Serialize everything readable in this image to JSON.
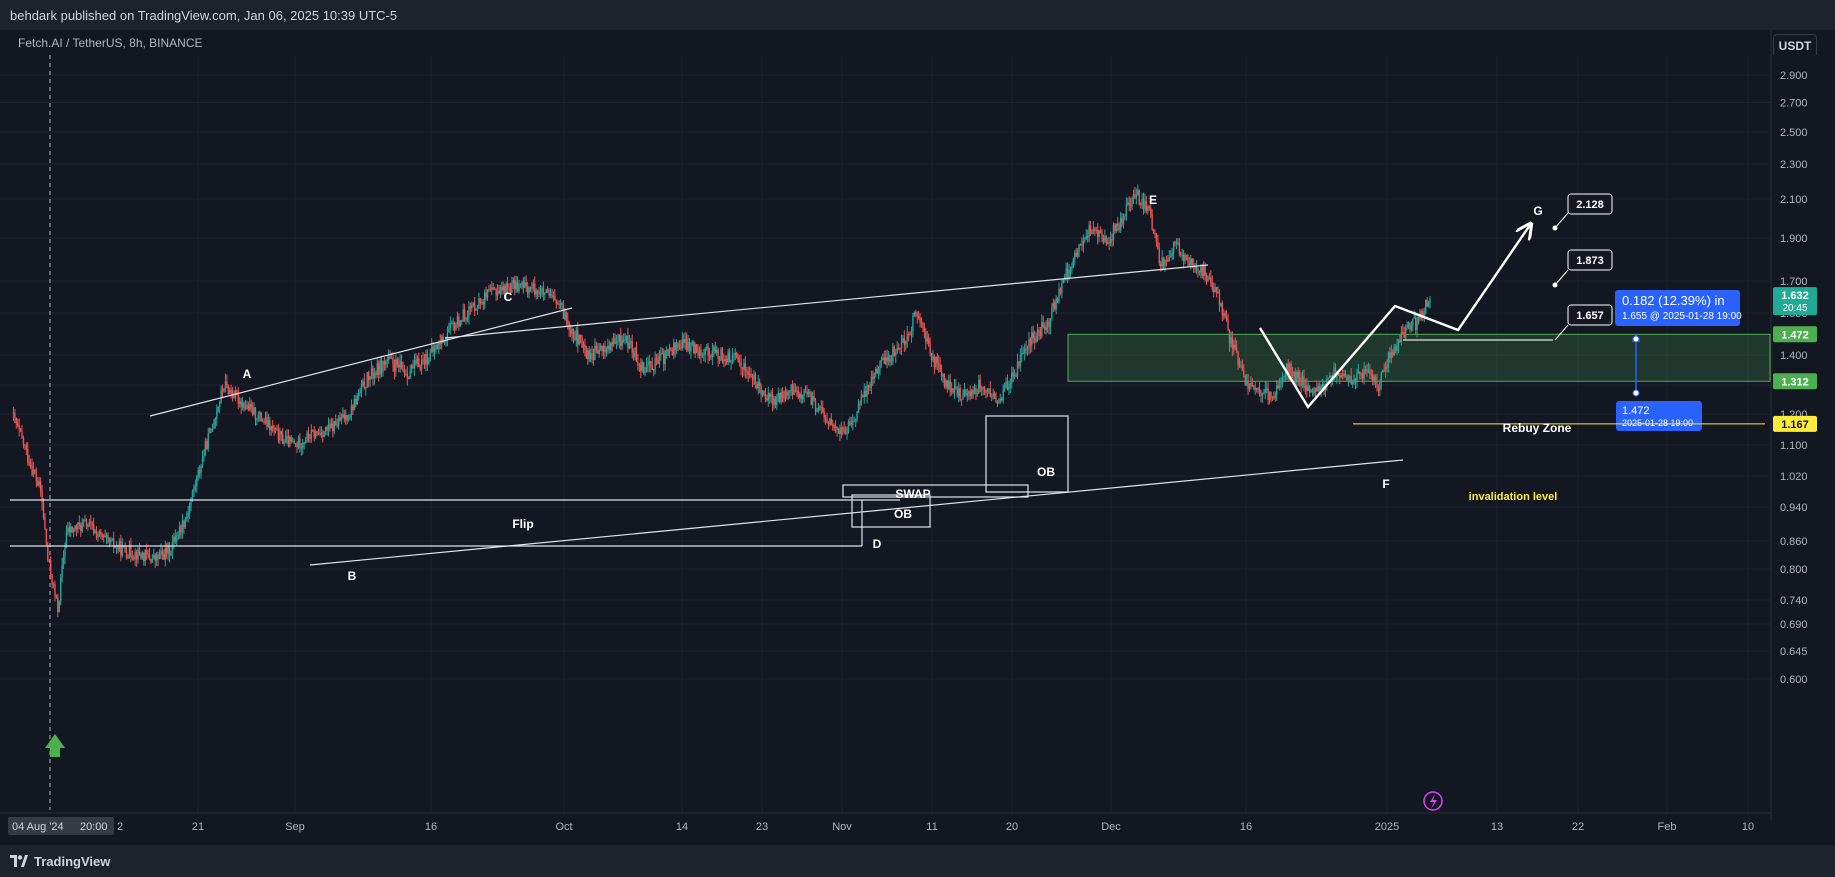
{
  "header": {
    "published": "behdark published on TradingView.com, Jan 06, 2025 10:39 UTC-5"
  },
  "footer": {
    "brand": "TradingView"
  },
  "chart_data": {
    "type": "candlestick",
    "symbol": "Fetch.AI / TetherUS, 8h, BINANCE",
    "currency": "USDT",
    "y_axis": {
      "ticks": [
        "2.900",
        "2.700",
        "2.500",
        "2.300",
        "2.100",
        "1.900",
        "1.700",
        "1.550",
        "1.400",
        "1.300",
        "1.200",
        "1.100",
        "1.020",
        "0.940",
        "0.860",
        "0.800",
        "0.740",
        "0.690",
        "0.645",
        "0.600"
      ]
    },
    "x_axis": {
      "ticks": [
        "21",
        "Sep",
        "16",
        "Oct",
        "14",
        "23",
        "Nov",
        "11",
        "20",
        "Dec",
        "16",
        "2025",
        "13",
        "22",
        "Feb",
        "10"
      ],
      "start_label": "04 Aug '24",
      "time_label": "20:00",
      "cut_label": "2"
    },
    "price_labels": [
      {
        "value": "1.632",
        "sub": "20:45",
        "color": "#22ab94",
        "price": 1.632
      },
      {
        "value": "1.472",
        "color": "#4caf50",
        "price": 1.472
      },
      {
        "value": "1.312",
        "color": "#4caf50",
        "price": 1.312
      },
      {
        "value": "1.167",
        "color": "#ffeb3b",
        "price": 1.167
      }
    ],
    "wave_points": [
      {
        "label": "A"
      },
      {
        "label": "B"
      },
      {
        "label": "C"
      },
      {
        "label": "D"
      },
      {
        "label": "E"
      },
      {
        "label": "F"
      },
      {
        "label": "G"
      }
    ],
    "annotations": {
      "flip": "Flip",
      "swap": "SWAP",
      "ob1": "OB",
      "ob2": "OB",
      "rebuy_zone": "Rebuy Zone",
      "invalidation": "invalidation level"
    },
    "targets": [
      "2.128",
      "1.873",
      "1.657"
    ],
    "measure": {
      "headline": "0.182 (12.39%) in",
      "detail": "1.655 @ 2025-01-28  19:00",
      "start_price": "1.472",
      "start_time": "2025-01-28 19:00"
    },
    "series": [
      {
        "name": "FET/USDT",
        "anchors": [
          [
            0,
            1.2
          ],
          [
            10,
            1.08
          ],
          [
            20,
            0.98
          ],
          [
            25,
            0.82
          ],
          [
            32,
            0.72
          ],
          [
            38,
            0.88
          ],
          [
            52,
            0.9
          ],
          [
            65,
            0.86
          ],
          [
            78,
            0.84
          ],
          [
            90,
            0.83
          ],
          [
            100,
            0.82
          ],
          [
            110,
            0.84
          ],
          [
            122,
            0.92
          ],
          [
            132,
            1.05
          ],
          [
            141,
            1.18
          ],
          [
            148,
            1.3
          ],
          [
            160,
            1.24
          ],
          [
            175,
            1.18
          ],
          [
            188,
            1.12
          ],
          [
            198,
            1.1
          ],
          [
            208,
            1.13
          ],
          [
            222,
            1.15
          ],
          [
            235,
            1.2
          ],
          [
            248,
            1.32
          ],
          [
            262,
            1.38
          ],
          [
            276,
            1.34
          ],
          [
            292,
            1.4
          ],
          [
            308,
            1.5
          ],
          [
            322,
            1.58
          ],
          [
            336,
            1.65
          ],
          [
            352,
            1.68
          ],
          [
            366,
            1.66
          ],
          [
            380,
            1.6
          ],
          [
            392,
            1.48
          ],
          [
            402,
            1.4
          ],
          [
            414,
            1.42
          ],
          [
            428,
            1.46
          ],
          [
            440,
            1.36
          ],
          [
            452,
            1.38
          ],
          [
            466,
            1.44
          ],
          [
            480,
            1.42
          ],
          [
            494,
            1.4
          ],
          [
            508,
            1.38
          ],
          [
            520,
            1.3
          ],
          [
            532,
            1.24
          ],
          [
            544,
            1.28
          ],
          [
            556,
            1.26
          ],
          [
            566,
            1.2
          ],
          [
            576,
            1.14
          ],
          [
            586,
            1.16
          ],
          [
            596,
            1.28
          ],
          [
            604,
            1.36
          ],
          [
            614,
            1.4
          ],
          [
            624,
            1.46
          ],
          [
            632,
            1.55
          ],
          [
            642,
            1.4
          ],
          [
            652,
            1.3
          ],
          [
            664,
            1.26
          ],
          [
            676,
            1.3
          ],
          [
            688,
            1.24
          ],
          [
            700,
            1.34
          ],
          [
            712,
            1.46
          ],
          [
            724,
            1.52
          ],
          [
            734,
            1.7
          ],
          [
            744,
            1.84
          ],
          [
            754,
            1.96
          ],
          [
            764,
            1.88
          ],
          [
            774,
            1.98
          ],
          [
            784,
            2.14
          ],
          [
            794,
            2.02
          ],
          [
            802,
            1.78
          ],
          [
            812,
            1.86
          ],
          [
            822,
            1.78
          ],
          [
            832,
            1.74
          ],
          [
            842,
            1.62
          ],
          [
            850,
            1.46
          ],
          [
            860,
            1.32
          ],
          [
            870,
            1.28
          ],
          [
            880,
            1.26
          ],
          [
            890,
            1.36
          ],
          [
            902,
            1.3
          ],
          [
            912,
            1.28
          ],
          [
            922,
            1.34
          ],
          [
            934,
            1.32
          ],
          [
            944,
            1.34
          ],
          [
            954,
            1.3
          ],
          [
            962,
            1.4
          ],
          [
            972,
            1.48
          ],
          [
            982,
            1.52
          ],
          [
            990,
            1.62
          ]
        ]
      }
    ]
  }
}
